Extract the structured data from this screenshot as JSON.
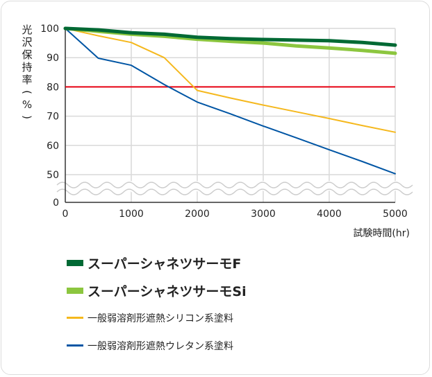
{
  "chart_data": {
    "type": "line",
    "title": "",
    "xlabel": "試験時間(hr)",
    "ylabel": "光沢保持率(%)",
    "x_ticks": [
      0,
      1000,
      2000,
      3000,
      4000,
      5000
    ],
    "y_ticks": [
      0,
      50,
      60,
      70,
      80,
      90,
      100
    ],
    "xlim": [
      0,
      5000
    ],
    "ylim": [
      50,
      100
    ],
    "axis_break": "between 0 and 50",
    "grid": true,
    "legend_position": "bottom",
    "reference_line": {
      "y": 80,
      "color": "#e60012"
    },
    "series": [
      {
        "name": "スーパーシャネツサーモF",
        "color": "#006934",
        "x": [
          0,
          500,
          1000,
          1500,
          2000,
          2500,
          3000,
          3500,
          4000,
          4500,
          5000
        ],
        "y": [
          100,
          99.5,
          98.5,
          98,
          97,
          96.5,
          96.2,
          96,
          95.8,
          95.2,
          94.3
        ]
      },
      {
        "name": "スーパーシャネツサーモSi",
        "color": "#8cc63f",
        "x": [
          0,
          500,
          1000,
          1500,
          2000,
          2500,
          3000,
          3500,
          4000,
          4500,
          5000
        ],
        "y": [
          100,
          99,
          98,
          97.3,
          96.3,
          95.6,
          95,
          94,
          93.3,
          92.5,
          91.5
        ]
      },
      {
        "name": "一般弱溶剤形遮熱シリコン系塗料",
        "color": "#f5b81d",
        "x": [
          0,
          500,
          1000,
          1500,
          2000,
          2500,
          3000,
          3500,
          4000,
          4500,
          5000
        ],
        "y": [
          100,
          97.5,
          95.2,
          90,
          78.8,
          76.2,
          73.8,
          71.5,
          69.2,
          66.8,
          64.5
        ]
      },
      {
        "name": "一般弱溶剤形遮熱ウレタン系塗料",
        "color": "#0055a4",
        "x": [
          0,
          500,
          1000,
          1500,
          2000,
          2500,
          3000,
          3500,
          4000,
          4500,
          5000
        ],
        "y": [
          100,
          89.8,
          87.4,
          80.8,
          74.8,
          70.8,
          66.6,
          62.6,
          58.5,
          54.5,
          50.3
        ]
      }
    ]
  },
  "colors": {
    "grid": "#d9d9d9",
    "axis": "#333333",
    "break_wave": "#cccccc"
  }
}
